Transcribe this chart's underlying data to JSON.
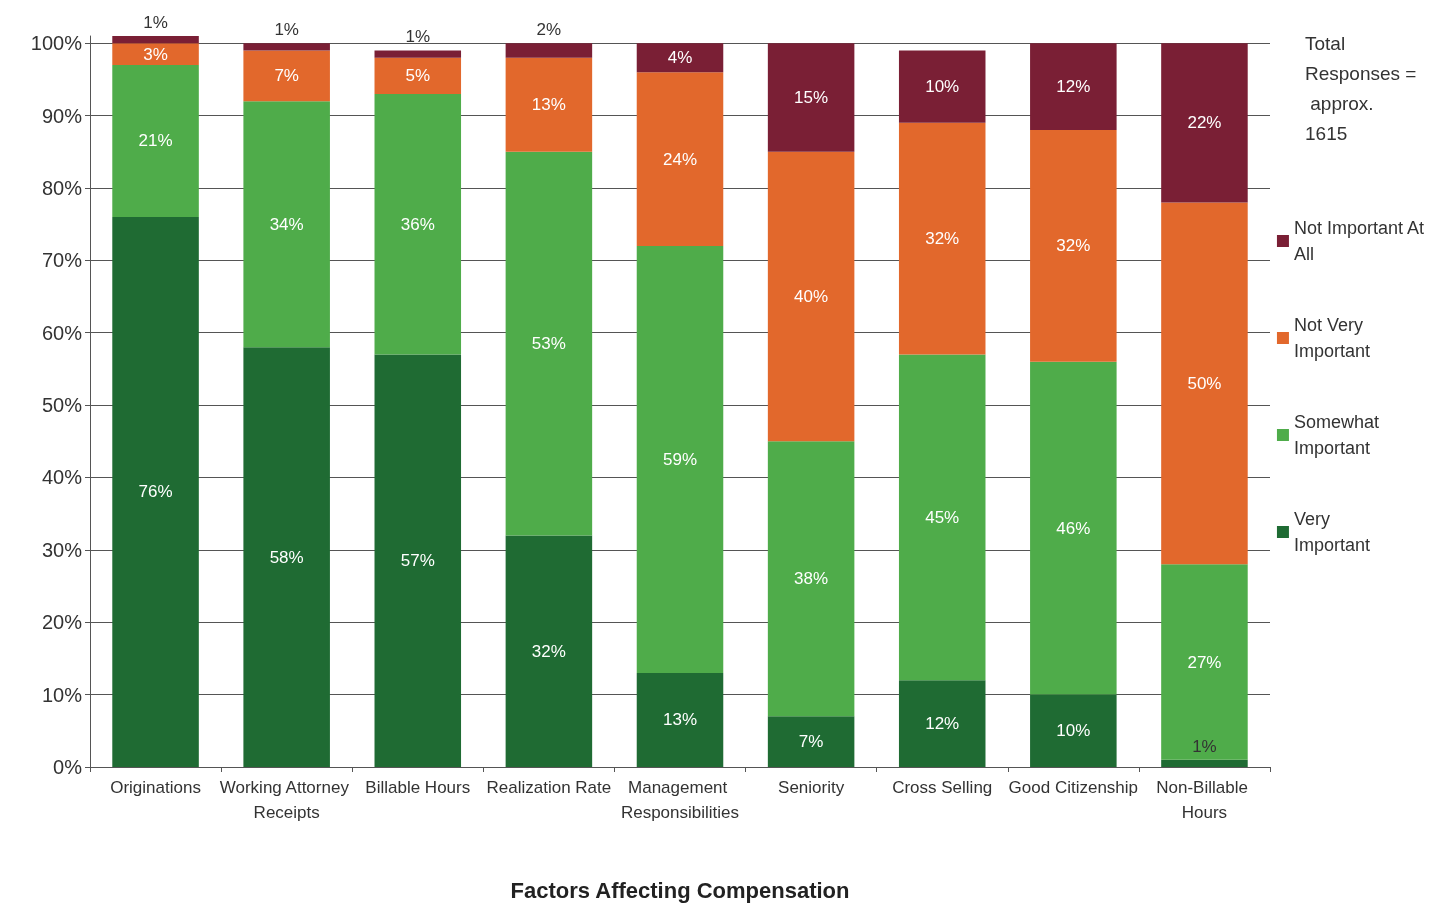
{
  "chart_data": {
    "type": "bar",
    "stacked": true,
    "xlabel": "Factors Affecting Compensation",
    "categories": [
      "Originations",
      "Working Attorney Receipts",
      "Billable Hours",
      "Realization Rate",
      "Management Responsibilities",
      "Seniority",
      "Cross Selling",
      "Good Citizenship",
      "Non-Billable Hours"
    ],
    "series": [
      {
        "name": "Very Important",
        "color": "#1f6b33",
        "values": [
          76,
          58,
          57,
          32,
          13,
          7,
          12,
          10,
          1
        ],
        "value_labels": [
          "76%",
          "58%",
          "57%",
          "32%",
          "13%",
          "7%",
          "12%",
          "10%",
          "1%"
        ]
      },
      {
        "name": "Somewhat Important",
        "color": "#4fac4a",
        "values": [
          21,
          34,
          36,
          53,
          59,
          38,
          45,
          46,
          27
        ],
        "value_labels": [
          "21%",
          "34%",
          "36%",
          "53%",
          "59%",
          "38%",
          "45%",
          "46%",
          "27%"
        ]
      },
      {
        "name": "Not Very Important",
        "color": "#e2682c",
        "values": [
          3,
          7,
          5,
          13,
          24,
          40,
          32,
          32,
          50
        ],
        "value_labels": [
          "3%",
          "7%",
          "5%",
          "13%",
          "24%",
          "40%",
          "32%",
          "32%",
          "50%"
        ]
      },
      {
        "name": "Not Important At All",
        "color": "#7a1f35",
        "values": [
          1,
          1,
          1,
          2,
          4,
          15,
          10,
          12,
          22
        ],
        "value_labels": [
          "1%",
          "1%",
          "1%",
          "2%",
          "4%",
          "15%",
          "10%",
          "12%",
          "22%"
        ]
      }
    ],
    "ylim": [
      0,
      101
    ],
    "yticks": [
      {
        "value": 0,
        "label": "0%"
      },
      {
        "value": 10,
        "label": "10%"
      },
      {
        "value": 20,
        "label": "20%"
      },
      {
        "value": 30,
        "label": "30%"
      },
      {
        "value": 40,
        "label": "40%"
      },
      {
        "value": 50,
        "label": "50%"
      },
      {
        "value": 60,
        "label": "60%"
      },
      {
        "value": 70,
        "label": "70%"
      },
      {
        "value": 80,
        "label": "80%"
      },
      {
        "value": 90,
        "label": "90%"
      },
      {
        "value": 100,
        "label": "100%"
      }
    ],
    "grid": "y",
    "legend": "right",
    "annotations": [
      "Total Responses = approx. 1615"
    ]
  }
}
